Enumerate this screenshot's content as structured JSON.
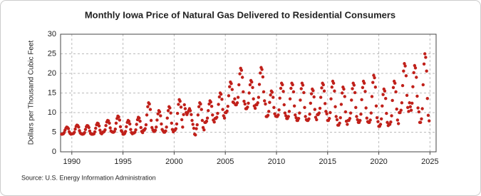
{
  "chart_data": {
    "type": "scatter",
    "title": "Monthly Iowa Price of Natural Gas Delivered to Residential Consumers",
    "ylabel": "Dollars per Thousand Cubic Feet",
    "source": "Source: U.S. Energy Information Administration",
    "color": "#c0201a",
    "xlim": [
      1988.9,
      2025.6
    ],
    "xticks": [
      1990,
      1995,
      2000,
      2005,
      2010,
      2015,
      2020,
      2025
    ],
    "ylim": [
      0,
      30
    ],
    "yticks": [
      0,
      5,
      10,
      15,
      20,
      25,
      30
    ],
    "grid": true,
    "x": [
      1989,
      1989.08,
      1989.17,
      1989.25,
      1989.33,
      1989.42,
      1989.5,
      1989.58,
      1989.67,
      1989.75,
      1989.83,
      1989.92,
      1990,
      1990.08,
      1990.17,
      1990.25,
      1990.33,
      1990.42,
      1990.5,
      1990.58,
      1990.67,
      1990.75,
      1990.83,
      1990.92,
      1991,
      1991.08,
      1991.17,
      1991.25,
      1991.33,
      1991.42,
      1991.5,
      1991.58,
      1991.67,
      1991.75,
      1991.83,
      1991.92,
      1992,
      1992.08,
      1992.17,
      1992.25,
      1992.33,
      1992.42,
      1992.5,
      1992.58,
      1992.67,
      1992.75,
      1992.83,
      1992.92,
      1993,
      1993.08,
      1993.17,
      1993.25,
      1993.33,
      1993.42,
      1993.5,
      1993.58,
      1993.67,
      1993.75,
      1993.83,
      1993.92,
      1994,
      1994.08,
      1994.17,
      1994.25,
      1994.33,
      1994.42,
      1994.5,
      1994.58,
      1994.67,
      1994.75,
      1994.83,
      1994.92,
      1995,
      1995.08,
      1995.17,
      1995.25,
      1995.33,
      1995.42,
      1995.5,
      1995.58,
      1995.67,
      1995.75,
      1995.83,
      1995.92,
      1996,
      1996.08,
      1996.17,
      1996.25,
      1996.33,
      1996.42,
      1996.5,
      1996.58,
      1996.67,
      1996.75,
      1996.83,
      1996.92,
      1997,
      1997.08,
      1997.17,
      1997.25,
      1997.33,
      1997.42,
      1997.5,
      1997.58,
      1997.67,
      1997.75,
      1997.83,
      1997.92,
      1998,
      1998.08,
      1998.17,
      1998.25,
      1998.33,
      1998.42,
      1998.5,
      1998.58,
      1998.67,
      1998.75,
      1998.83,
      1998.92,
      1999,
      1999.08,
      1999.17,
      1999.25,
      1999.33,
      1999.42,
      1999.5,
      1999.58,
      1999.67,
      1999.75,
      1999.83,
      1999.92,
      2000,
      2000.08,
      2000.17,
      2000.25,
      2000.33,
      2000.42,
      2000.5,
      2000.58,
      2000.67,
      2000.75,
      2000.83,
      2000.92,
      2001,
      2001.08,
      2001.17,
      2001.25,
      2001.33,
      2001.42,
      2001.5,
      2001.58,
      2001.67,
      2001.75,
      2001.83,
      2001.92,
      2002,
      2002.08,
      2002.17,
      2002.25,
      2002.33,
      2002.42,
      2002.5,
      2002.58,
      2002.67,
      2002.75,
      2002.83,
      2002.92,
      2003,
      2003.08,
      2003.17,
      2003.25,
      2003.33,
      2003.42,
      2003.5,
      2003.58,
      2003.67,
      2003.75,
      2003.83,
      2003.92,
      2004,
      2004.08,
      2004.17,
      2004.25,
      2004.33,
      2004.42,
      2004.5,
      2004.58,
      2004.67,
      2004.75,
      2004.83,
      2004.92,
      2005,
      2005.08,
      2005.17,
      2005.25,
      2005.33,
      2005.42,
      2005.5,
      2005.58,
      2005.67,
      2005.75,
      2005.83,
      2005.92,
      2006,
      2006.08,
      2006.17,
      2006.25,
      2006.33,
      2006.42,
      2006.5,
      2006.58,
      2006.67,
      2006.75,
      2006.83,
      2006.92,
      2007,
      2007.08,
      2007.17,
      2007.25,
      2007.33,
      2007.42,
      2007.5,
      2007.58,
      2007.67,
      2007.75,
      2007.83,
      2007.92,
      2008,
      2008.08,
      2008.17,
      2008.25,
      2008.33,
      2008.42,
      2008.5,
      2008.58,
      2008.67,
      2008.75,
      2008.83,
      2008.92,
      2009,
      2009.08,
      2009.17,
      2009.25,
      2009.33,
      2009.42,
      2009.5,
      2009.58,
      2009.67,
      2009.75,
      2009.83,
      2009.92,
      2010,
      2010.08,
      2010.17,
      2010.25,
      2010.33,
      2010.42,
      2010.5,
      2010.58,
      2010.67,
      2010.75,
      2010.83,
      2010.92,
      2011,
      2011.08,
      2011.17,
      2011.25,
      2011.33,
      2011.42,
      2011.5,
      2011.58,
      2011.67,
      2011.75,
      2011.83,
      2011.92,
      2012,
      2012.08,
      2012.17,
      2012.25,
      2012.33,
      2012.42,
      2012.5,
      2012.58,
      2012.67,
      2012.75,
      2012.83,
      2012.92,
      2013,
      2013.08,
      2013.17,
      2013.25,
      2013.33,
      2013.42,
      2013.5,
      2013.58,
      2013.67,
      2013.75,
      2013.83,
      2013.92,
      2014,
      2014.08,
      2014.17,
      2014.25,
      2014.33,
      2014.42,
      2014.5,
      2014.58,
      2014.67,
      2014.75,
      2014.83,
      2014.92,
      2015,
      2015.08,
      2015.17,
      2015.25,
      2015.33,
      2015.42,
      2015.5,
      2015.58,
      2015.67,
      2015.75,
      2015.83,
      2015.92,
      2016,
      2016.08,
      2016.17,
      2016.25,
      2016.33,
      2016.42,
      2016.5,
      2016.58,
      2016.67,
      2016.75,
      2016.83,
      2016.92,
      2017,
      2017.08,
      2017.17,
      2017.25,
      2017.33,
      2017.42,
      2017.5,
      2017.58,
      2017.67,
      2017.75,
      2017.83,
      2017.92,
      2018,
      2018.08,
      2018.17,
      2018.25,
      2018.33,
      2018.42,
      2018.5,
      2018.58,
      2018.67,
      2018.75,
      2018.83,
      2018.92,
      2019,
      2019.08,
      2019.17,
      2019.25,
      2019.33,
      2019.42,
      2019.5,
      2019.58,
      2019.67,
      2019.75,
      2019.83,
      2019.92,
      2020,
      2020.08,
      2020.17,
      2020.25,
      2020.33,
      2020.42,
      2020.5,
      2020.58,
      2020.67,
      2020.75,
      2020.83,
      2020.92,
      2021,
      2021.08,
      2021.17,
      2021.25,
      2021.33,
      2021.42,
      2021.5,
      2021.58,
      2021.67,
      2021.75,
      2021.83,
      2021.92,
      2022,
      2022.08,
      2022.17,
      2022.25,
      2022.33,
      2022.42,
      2022.5,
      2022.58,
      2022.67,
      2022.75,
      2022.83,
      2022.92,
      2023,
      2023.08,
      2023.17,
      2023.25,
      2023.33,
      2023.42,
      2023.5,
      2023.58,
      2023.67,
      2023.75,
      2023.83,
      2023.92,
      2024,
      2024.08,
      2024.17,
      2024.25,
      2024.33,
      2024.42,
      2024.5,
      2024.58,
      2024.67,
      2024.75,
      2024.83,
      2024.92
    ],
    "values": [
      4.5,
      4.5,
      4.6,
      4.9,
      5.5,
      6.0,
      6.3,
      6.2,
      5.9,
      5.1,
      4.7,
      4.5,
      4.6,
      4.6,
      4.7,
      5.0,
      5.8,
      6.5,
      6.8,
      6.7,
      6.3,
      5.4,
      4.8,
      4.6,
      4.5,
      4.5,
      4.6,
      4.9,
      5.7,
      6.4,
      6.7,
      6.6,
      6.2,
      5.3,
      4.7,
      4.5,
      4.5,
      4.5,
      4.6,
      5.1,
      6.0,
      6.9,
      7.3,
      7.2,
      6.6,
      5.5,
      4.8,
      4.6,
      5.0,
      5.0,
      5.2,
      5.6,
      6.7,
      7.6,
      8.0,
      7.9,
      7.3,
      6.1,
      5.3,
      5.1,
      5.0,
      5.0,
      5.2,
      5.8,
      7.3,
      8.5,
      9.1,
      8.9,
      8.1,
      6.4,
      5.4,
      5.1,
      4.5,
      4.5,
      4.7,
      5.2,
      6.4,
      7.5,
      8.0,
      7.8,
      7.1,
      5.7,
      4.9,
      4.6,
      4.8,
      4.8,
      5.0,
      5.6,
      7.0,
      8.2,
      8.8,
      8.6,
      7.8,
      6.2,
      5.2,
      4.9,
      5.5,
      5.5,
      5.9,
      6.9,
      9.4,
      11.5,
      12.5,
      12.2,
      10.8,
      8.0,
      6.2,
      5.6,
      5.2,
      5.2,
      5.5,
      6.3,
      8.1,
      9.7,
      10.5,
      10.2,
      9.2,
      7.1,
      5.7,
      5.3,
      5.0,
      5.0,
      5.3,
      6.3,
      8.6,
      10.5,
      11.5,
      11.2,
      9.9,
      7.3,
      5.7,
      5.1,
      5.5,
      5.5,
      5.9,
      7.1,
      9.8,
      12.1,
      13.3,
      12.9,
      11.4,
      8.2,
      6.3,
      9.5,
      12.0,
      11.0,
      10.0,
      9.5,
      10.0,
      10.5,
      11.0,
      10.5,
      9.5,
      8.0,
      7.0,
      6.0,
      4.5,
      4.3,
      5.9,
      6.9,
      9.4,
      11.5,
      12.5,
      12.2,
      10.8,
      8.0,
      6.2,
      5.6,
      7.5,
      7.5,
      7.8,
      8.6,
      10.5,
      12.2,
      13.0,
      12.7,
      11.6,
      9.4,
      8.1,
      7.6,
      8.5,
      8.5,
      8.8,
      9.8,
      12.1,
      14.0,
      15.0,
      14.7,
      13.4,
      10.8,
      9.2,
      8.6,
      10.0,
      10.0,
      10.4,
      11.6,
      14.3,
      16.6,
      17.8,
      17.4,
      15.9,
      12.7,
      12.5,
      13.5,
      12.0,
      12.0,
      12.5,
      13.9,
      17.1,
      19.9,
      21.3,
      20.8,
      19.0,
      15.3,
      12.9,
      12.2,
      11.0,
      11.0,
      11.4,
      12.4,
      15.0,
      17.1,
      18.2,
      17.8,
      16.4,
      13.5,
      11.7,
      11.1,
      12.0,
      12.0,
      12.5,
      13.9,
      17.2,
      20.1,
      21.5,
      21.0,
      19.1,
      15.3,
      13.0,
      12.2,
      9.0,
      9.0,
      9.3,
      10.3,
      12.6,
      14.5,
      15.5,
      15.2,
      13.9,
      11.3,
      9.7,
      9.1,
      9.0,
      9.0,
      9.4,
      10.7,
      13.7,
      16.2,
      17.5,
      17.1,
      15.4,
      12.0,
      9.9,
      9.2,
      8.5,
      8.5,
      9.0,
      10.3,
      13.5,
      16.2,
      17.5,
      17.1,
      15.3,
      11.7,
      9.4,
      8.7,
      8.0,
      8.0,
      8.5,
      9.9,
      13.2,
      16.1,
      17.5,
      17.0,
      15.1,
      11.3,
      9.0,
      8.2,
      8.0,
      8.0,
      8.4,
      9.6,
      12.4,
      14.8,
      16.0,
      15.6,
      14.0,
      10.8,
      8.8,
      8.2,
      9.5,
      9.5,
      9.9,
      11.1,
      13.9,
      16.3,
      17.5,
      17.1,
      15.5,
      12.3,
      10.3,
      9.7,
      8.0,
      8.0,
      8.5,
      10.0,
      13.5,
      16.5,
      18.0,
      17.5,
      15.5,
      11.5,
      9.0,
      8.2,
      6.8,
      6.8,
      7.3,
      8.7,
      12.1,
      15.0,
      16.5,
      16.0,
      14.1,
      10.2,
      7.8,
      7.0,
      8.0,
      8.0,
      8.5,
      9.9,
      13.2,
      16.1,
      17.5,
      17.0,
      15.1,
      11.3,
      9.0,
      8.2,
      7.5,
      7.5,
      8.0,
      9.6,
      13.3,
      16.4,
      18.0,
      17.5,
      15.4,
      11.2,
      8.6,
      7.7,
      7.5,
      7.5,
      8.1,
      9.9,
      14.1,
      17.7,
      19.5,
      18.9,
      16.5,
      11.7,
      8.7,
      7.7,
      6.5,
      6.5,
      7.0,
      8.4,
      11.7,
      14.6,
      16.0,
      15.5,
      13.6,
      9.8,
      7.5,
      6.7,
      7.0,
      7.0,
      7.6,
      9.2,
      13.1,
      16.4,
      18.0,
      17.5,
      15.3,
      10.9,
      8.1,
      7.2,
      10.0,
      10.0,
      10.6,
      12.5,
      16.9,
      20.6,
      22.5,
      21.9,
      19.4,
      14.4,
      11.3,
      10.3,
      12.5,
      11.5,
      10.6,
      12.4,
      16.6,
      20.2,
      22.0,
      21.4,
      19.0,
      14.2,
      11.2,
      10.2,
      7.5,
      7.5,
      8.4,
      11.0,
      17.1,
      22.4,
      25.0,
      24.1,
      20.6,
      13.6,
      9.3,
      7.9
    ]
  }
}
